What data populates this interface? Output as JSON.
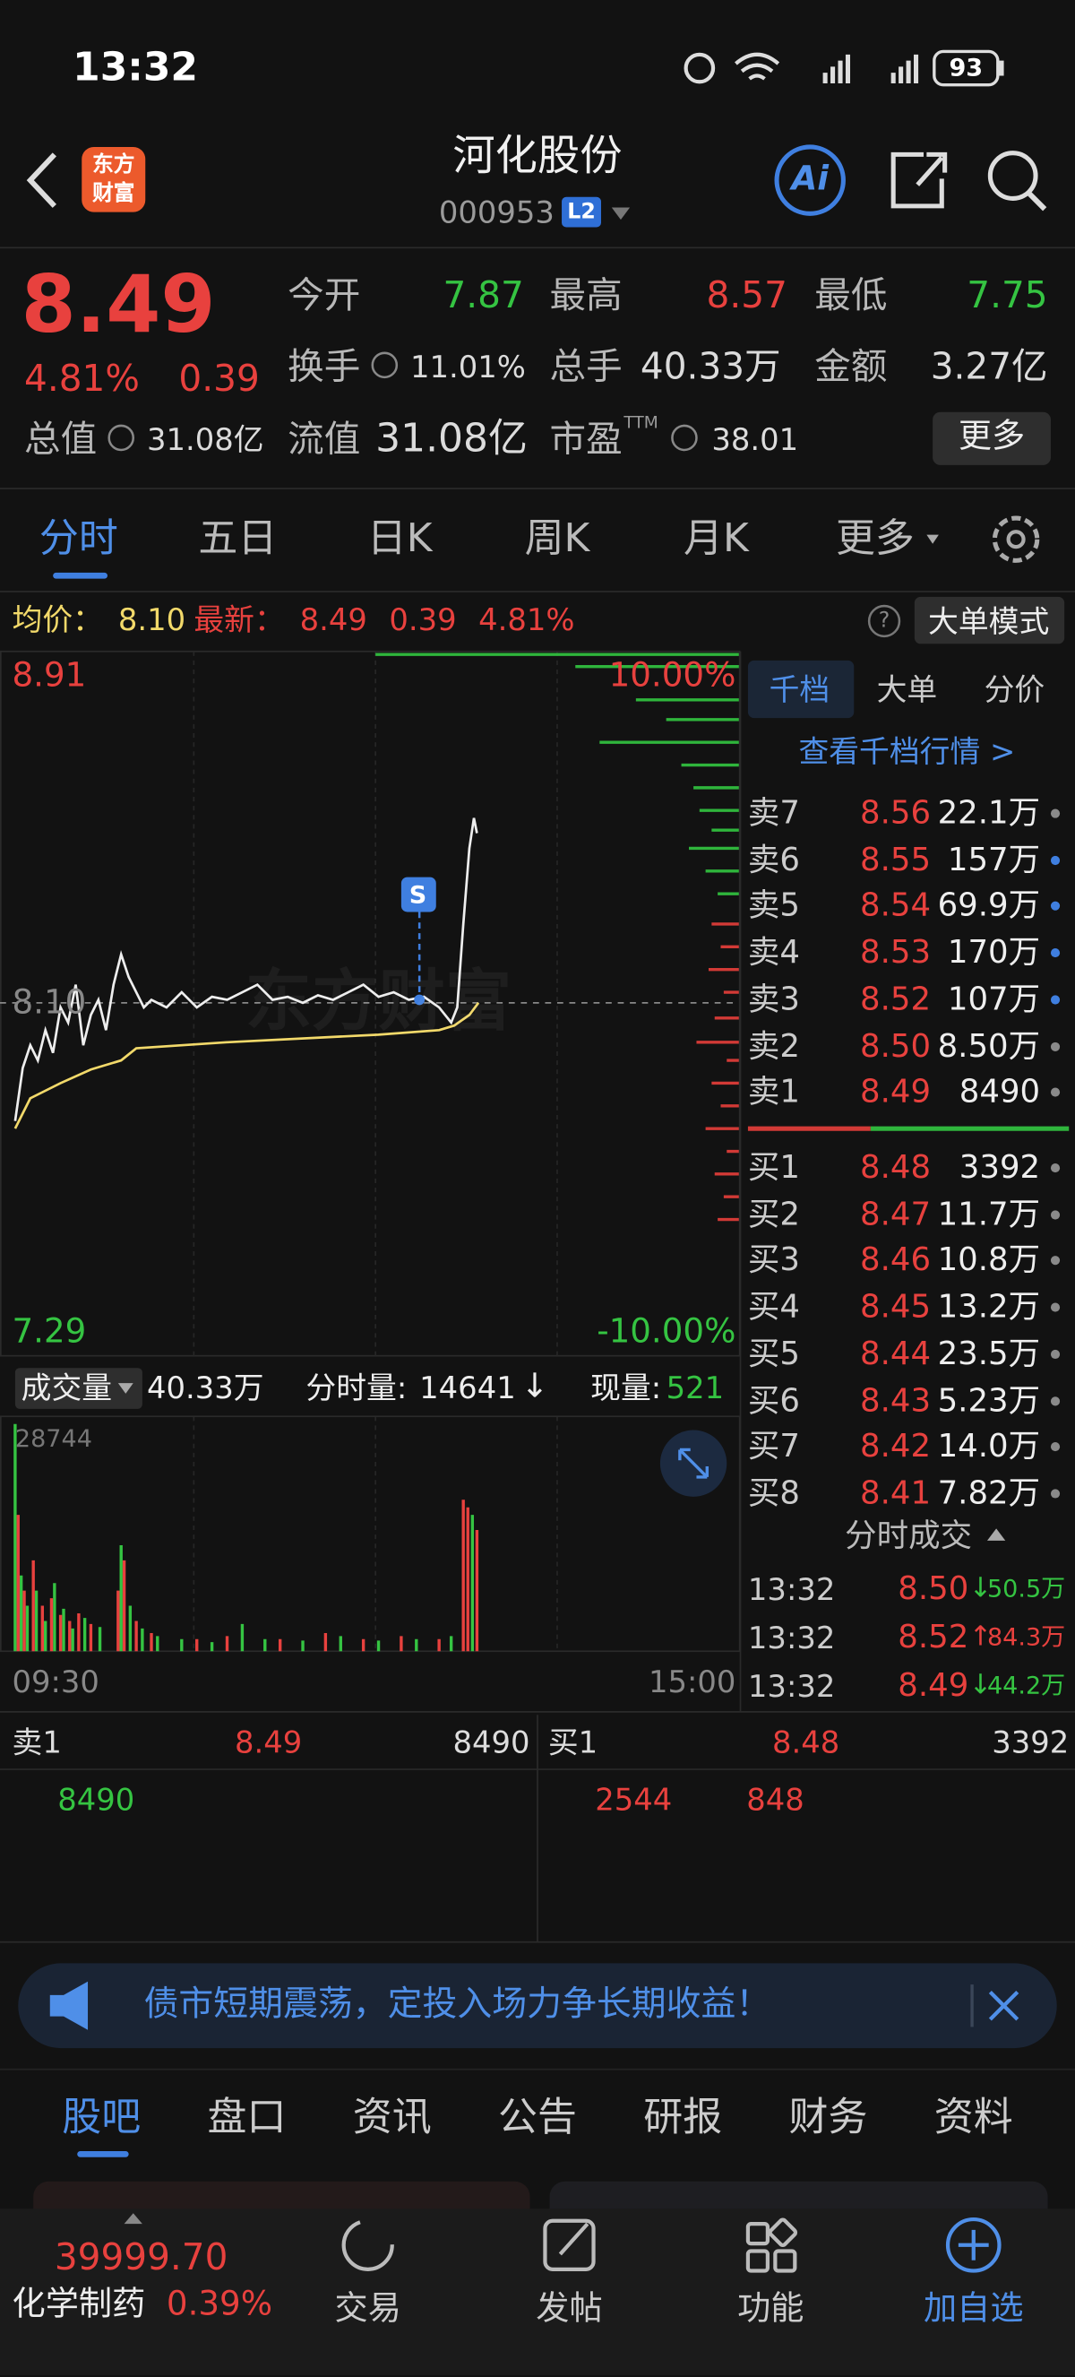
{
  "status": {
    "time": "13:32",
    "battery": "93"
  },
  "header": {
    "logo": [
      "东方",
      "财富"
    ],
    "title": "河化股份",
    "code": "000953",
    "badge": "L2",
    "ai": "Ai"
  },
  "quote": {
    "price": "8.49",
    "change_pct": "4.81%",
    "change": "0.39",
    "stats": [
      {
        "label": "今开",
        "value": "7.87"
      },
      {
        "label": "最高",
        "value": "8.57"
      },
      {
        "label": "最低",
        "value": "7.75"
      },
      {
        "label": "换手",
        "value": "11.01%"
      },
      {
        "label": "总手",
        "value": "40.33万"
      },
      {
        "label": "金额",
        "value": "3.27亿"
      },
      {
        "label": "总值",
        "value": "31.08亿"
      },
      {
        "label": "流值",
        "value": "31.08亿"
      },
      {
        "label": "市盈",
        "sup": "TTM",
        "value": "38.01"
      }
    ],
    "more": "更多"
  },
  "tabs": {
    "items": [
      "分时",
      "五日",
      "日K",
      "周K",
      "月K",
      "更多"
    ],
    "active": 0
  },
  "info": {
    "avg_label": "均价：",
    "avg": "8.10",
    "last_label": "最新：",
    "last": "8.49",
    "change": "0.39",
    "change_pct": "4.81%",
    "help": "?",
    "mode": "大单模式"
  },
  "chart": {
    "high": "8.91",
    "high_pct": "10.00%",
    "mid": "8.10",
    "low": "7.29",
    "low_pct": "-10.00%",
    "watermark": "东方财富",
    "signal": "S",
    "volume_label": "成交量",
    "volume_total": "40.33万",
    "minute_volume_label": "分时量:",
    "minute_volume": "14641",
    "minute_arrow": "↓",
    "current_volume_label": "现量:",
    "current_volume": "521",
    "volume_max": "28744",
    "start": "09:30",
    "end": "15:00"
  },
  "book": {
    "tabs": [
      "千档",
      "大单",
      "分价"
    ],
    "active": 0,
    "link": "查看千档行情 >",
    "asks": [
      {
        "label": "卖7",
        "price": "8.56",
        "volume": "22.1万",
        "dot": "#8a8a8a"
      },
      {
        "label": "卖6",
        "price": "8.55",
        "volume": "157万",
        "dot": "#3f7fe0"
      },
      {
        "label": "卖5",
        "price": "8.54",
        "volume": "69.9万",
        "dot": "#3f7fe0"
      },
      {
        "label": "卖4",
        "price": "8.53",
        "volume": "170万",
        "dot": "#3f7fe0"
      },
      {
        "label": "卖3",
        "price": "8.52",
        "volume": "107万",
        "dot": "#3f7fe0"
      },
      {
        "label": "卖2",
        "price": "8.50",
        "volume": "8.50万",
        "dot": "#8a8a8a"
      },
      {
        "label": "卖1",
        "price": "8.49",
        "volume": "8490",
        "dot": "#8a8a8a"
      }
    ],
    "bids": [
      {
        "label": "买1",
        "price": "8.48",
        "volume": "3392",
        "dot": "#8a8a8a"
      },
      {
        "label": "买2",
        "price": "8.47",
        "volume": "11.7万",
        "dot": "#8a8a8a"
      },
      {
        "label": "买3",
        "price": "8.46",
        "volume": "10.8万",
        "dot": "#8a8a8a"
      },
      {
        "label": "买4",
        "price": "8.45",
        "volume": "13.2万",
        "dot": "#8a8a8a"
      },
      {
        "label": "买5",
        "price": "8.44",
        "volume": "23.5万",
        "dot": "#8a8a8a"
      },
      {
        "label": "买6",
        "price": "8.43",
        "volume": "5.23万",
        "dot": "#8a8a8a"
      },
      {
        "label": "买7",
        "price": "8.42",
        "volume": "14.0万",
        "dot": "#8a8a8a"
      },
      {
        "label": "买8",
        "price": "8.41",
        "volume": "7.82万",
        "dot": "#8a8a8a"
      }
    ]
  },
  "trades": {
    "title": "分时成交",
    "rows": [
      {
        "time": "13:32",
        "price": "8.50",
        "arrow": "↓",
        "volume": "50.5万",
        "color": "#35c442"
      },
      {
        "time": "13:32",
        "price": "8.52",
        "arrow": "↑",
        "volume": "84.3万",
        "color": "#e8413e"
      },
      {
        "time": "13:32",
        "price": "8.49",
        "arrow": "↓",
        "volume": "44.2万",
        "color": "#35c442"
      }
    ]
  },
  "level1": {
    "ask_label": "卖1",
    "ask_price": "8.49",
    "ask_volume": "8490",
    "bid_label": "买1",
    "bid_price": "8.48",
    "bid_volume": "3392",
    "ask_queue": [
      "8490"
    ],
    "bid_queue": [
      "2544",
      "848"
    ]
  },
  "banner": {
    "text": "债市短期震荡，定投入场力争长期收益！"
  },
  "sections": {
    "items": [
      "股吧",
      "盘口",
      "资讯",
      "公告",
      "研报",
      "财务",
      "资料"
    ],
    "active": 0
  },
  "footer": {
    "index": "39999.70",
    "sector": "化学制药",
    "sector_change": "0.39%",
    "nav": [
      "交易",
      "发帖",
      "功能",
      "加自选"
    ]
  }
}
